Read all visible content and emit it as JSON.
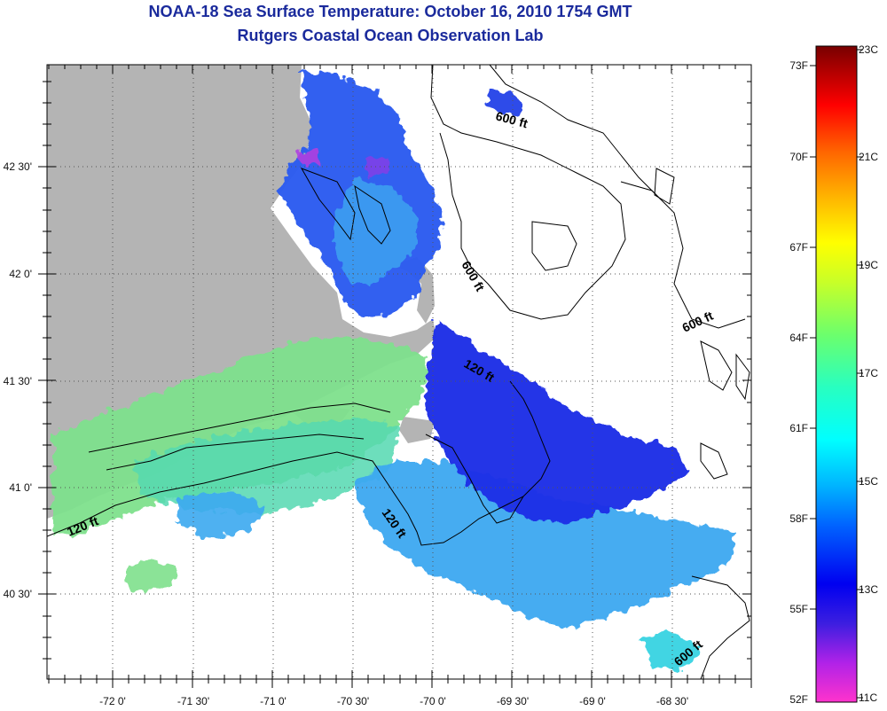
{
  "header": {
    "title": "NOAA-18 Sea Surface Temperature:  October 16, 2010 1754 GMT",
    "subtitle": "Rutgers Coastal Ocean Observation Lab"
  },
  "axes": {
    "x_ticks": [
      "-72 0'",
      "-71 30'",
      "-71 0'",
      "-70 30'",
      "-70 0'",
      "-69 30'",
      "-69 0'",
      "-68 30'"
    ],
    "y_ticks": [
      "42 30'",
      "42 0'",
      "41 30'",
      "41 0'",
      "40 30'"
    ]
  },
  "contour_labels": [
    "600 ft",
    "600 ft",
    "600 ft",
    "600 ft",
    "120 ft",
    "120 ft",
    "120 ft"
  ],
  "colorbar": {
    "fahrenheit": [
      "73F",
      "70F",
      "67F",
      "64F",
      "61F",
      "58F",
      "55F",
      "52F"
    ],
    "celsius": [
      "23C",
      "21C",
      "19C",
      "17C",
      "15C",
      "13C",
      "11C"
    ]
  },
  "colors": {
    "title": "#1a2a9c",
    "land": "#b4b4b4",
    "sst_cold": "#1e28e6",
    "sst_mid": "#3c9cf0",
    "sst_warm": "#7ee08c"
  }
}
